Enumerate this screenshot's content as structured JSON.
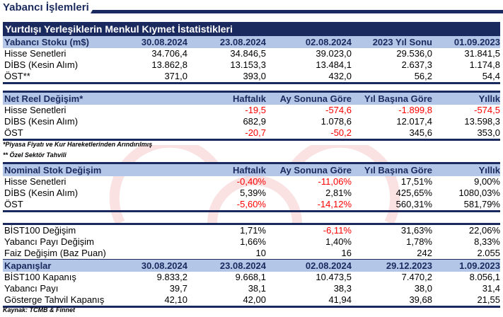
{
  "page_title": "Yabancı İşlemleri",
  "colors": {
    "navy": "#1b2a5e",
    "header_bg": "#b4c6e7",
    "negative": "#ff0000"
  },
  "section1": {
    "title": "Yurtdışı Yerleşiklerin Menkul Kıymet İstatistikleri",
    "header": [
      "Yabancı Stoku (m$)",
      "30.08.2024",
      "23.08.2024",
      "02.08.2024",
      "2023 Yıl Sonu",
      "01.09.2023"
    ],
    "rows": [
      [
        "Hisse Senetleri",
        "34.706,4",
        "34.846,5",
        "39.023,0",
        "29.536,0",
        "31.841,5"
      ],
      [
        "DİBS (Kesin Alım)",
        "13.862,8",
        "13.153,3",
        "13.484,1",
        "2.637,3",
        "1.174,8"
      ],
      [
        "ÖST**",
        "371,0",
        "393,0",
        "432,0",
        "56,2",
        "54,4"
      ]
    ]
  },
  "section2": {
    "header": [
      "Net Reel Değişim*",
      "",
      "Haftalık",
      "Ay Sonuna Göre",
      "Yıl Başına Göre",
      "Yıllık"
    ],
    "rows": [
      [
        "Hisse Senetleri",
        "",
        "-19,5",
        "-574,6",
        "-1.899,8",
        "-574,5"
      ],
      [
        "DİBS (Kesin Alım)",
        "",
        "682,9",
        "1.078,6",
        "12.017,4",
        "13.598,3"
      ],
      [
        "ÖST",
        "",
        "-20,7",
        "-50,2",
        "345,6",
        "353,0"
      ]
    ]
  },
  "notes": [
    "*Piyasa Fiyatı ve Kur Hareketlerinden Arındırılmış",
    "** Özel Sektör Tahvili"
  ],
  "section3": {
    "header": [
      "Nominal Stok Değişim",
      "",
      "Haftalık",
      "Ay Sonuna Göre",
      "Yıl Başına Göre",
      "Yıllık"
    ],
    "rows": [
      [
        "Hisse Senetleri",
        "",
        "-0,40%",
        "-11,06%",
        "17,51%",
        "9,00%"
      ],
      [
        "DİBS (Kesin Alım)",
        "",
        "5,39%",
        "2,81%",
        "425,65%",
        "1080,03%"
      ],
      [
        "ÖST",
        "",
        "-5,60%",
        "-14,12%",
        "560,31%",
        "581,79%"
      ]
    ]
  },
  "section4": {
    "rows": [
      [
        "BİST100 Değişim",
        "",
        "1,71%",
        "-6,11%",
        "31,63%",
        "22,06%"
      ],
      [
        "Yabancı Payı Değişim",
        "",
        "1,66%",
        "1,40%",
        "1,78%",
        "8,33%"
      ],
      [
        "Faiz Değişim (Baz Puan)",
        "",
        "10",
        "16",
        "242",
        "2.055"
      ]
    ]
  },
  "section5": {
    "header": [
      "Kapanışlar",
      "30.08.2024",
      "23.08.2024",
      "02.08.2024",
      "29.12.2023",
      "1.09.2023"
    ],
    "rows": [
      [
        "BİST100 Kapanış",
        "9.833,2",
        "9.668,1",
        "10.473,5",
        "7.470,2",
        "8.056,1"
      ],
      [
        "Yabancı Payı",
        "39,7",
        "38,1",
        "38,3",
        "38,0",
        "31,4"
      ],
      [
        "Gösterge Tahvil Kapanış",
        "42,10",
        "42,00",
        "41,94",
        "39,68",
        "21,55"
      ]
    ]
  },
  "source": "Kaynak: TCMB & Finnet"
}
